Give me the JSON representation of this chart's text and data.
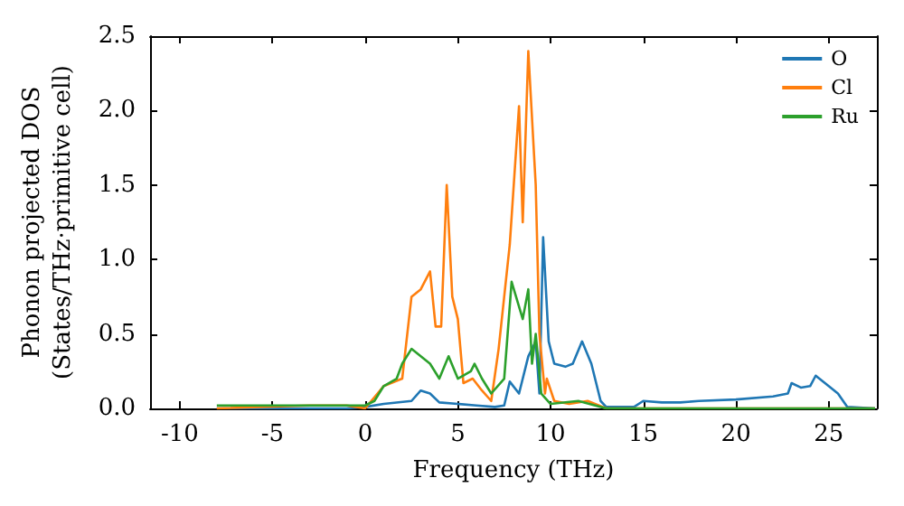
{
  "chart_data": {
    "type": "line",
    "xlabel": "Frequency (THz)",
    "ylabel": "Phonon projected DOS\n(States/THz·primitive cell)",
    "xlim": [
      -11.6,
      27.6
    ],
    "xticks": [
      -10,
      -5,
      0,
      5,
      10,
      15,
      20,
      25
    ],
    "ylim": [
      0,
      2.5
    ],
    "yticks": [
      {
        "value": 0,
        "label": "0.0"
      },
      {
        "value": 0.5,
        "label": "0.5"
      },
      {
        "value": 1,
        "label": "1.0"
      },
      {
        "value": 1.5,
        "label": "1.5"
      },
      {
        "value": 2,
        "label": "2.0"
      },
      {
        "value": 2.5,
        "label": "2.5"
      }
    ],
    "legend": "top right",
    "grid": false,
    "marker": "none",
    "line_style": "solid",
    "series": [
      {
        "name": "O",
        "color": "#1f77b4",
        "x": [
          -8,
          -1,
          0,
          1,
          2.5,
          3,
          3.5,
          4,
          5,
          6,
          7,
          7.5,
          7.8,
          8.3,
          8.8,
          9.2,
          9.4,
          9.6,
          9.9,
          10.2,
          10.8,
          11.2,
          11.7,
          12.2,
          12.7,
          13,
          14.5,
          15,
          16,
          17,
          18,
          20,
          22,
          22.8,
          23,
          23.5,
          24,
          24.3,
          25,
          25.5,
          26,
          27.5
        ],
        "values": [
          0,
          0,
          0.01,
          0.03,
          0.05,
          0.12,
          0.1,
          0.04,
          0.03,
          0.02,
          0.01,
          0.02,
          0.18,
          0.1,
          0.35,
          0.45,
          0.1,
          1.15,
          0.45,
          0.3,
          0.28,
          0.3,
          0.45,
          0.3,
          0.05,
          0.01,
          0.01,
          0.05,
          0.04,
          0.04,
          0.05,
          0.06,
          0.08,
          0.1,
          0.17,
          0.14,
          0.15,
          0.22,
          0.15,
          0.1,
          0.01,
          0
        ]
      },
      {
        "name": "Cl",
        "color": "#ff7f0e",
        "x": [
          -8,
          -3,
          -1,
          0,
          1,
          2,
          2.5,
          3,
          3.5,
          3.8,
          4.1,
          4.4,
          4.7,
          5,
          5.3,
          5.8,
          6.3,
          6.8,
          7.2,
          7.8,
          8.3,
          8.5,
          8.8,
          9.2,
          9.4,
          9.7,
          9.8,
          10.2,
          11,
          12,
          13,
          27.5
        ],
        "values": [
          0,
          0.02,
          0.02,
          0,
          0.15,
          0.2,
          0.75,
          0.8,
          0.92,
          0.55,
          0.55,
          1.5,
          0.75,
          0.6,
          0.17,
          0.2,
          0.12,
          0.05,
          0.4,
          1.1,
          2.03,
          1.25,
          2.4,
          1.5,
          0.5,
          0.1,
          0.2,
          0.05,
          0.03,
          0.05,
          0,
          0
        ]
      },
      {
        "name": "Ru",
        "color": "#2ca02c",
        "x": [
          -8,
          -3,
          0,
          0.5,
          1,
          1.7,
          2,
          2.5,
          3,
          3.5,
          4,
          4.5,
          5,
          5.7,
          5.9,
          6.3,
          6.8,
          7.5,
          7.9,
          8.5,
          8.8,
          9,
          9.2,
          9.5,
          10,
          11.5,
          13,
          27.5
        ],
        "values": [
          0.02,
          0.02,
          0.02,
          0.05,
          0.15,
          0.2,
          0.3,
          0.4,
          0.35,
          0.3,
          0.2,
          0.35,
          0.2,
          0.25,
          0.3,
          0.2,
          0.1,
          0.2,
          0.85,
          0.6,
          0.8,
          0.3,
          0.5,
          0.1,
          0.03,
          0.05,
          0,
          0
        ]
      }
    ]
  }
}
